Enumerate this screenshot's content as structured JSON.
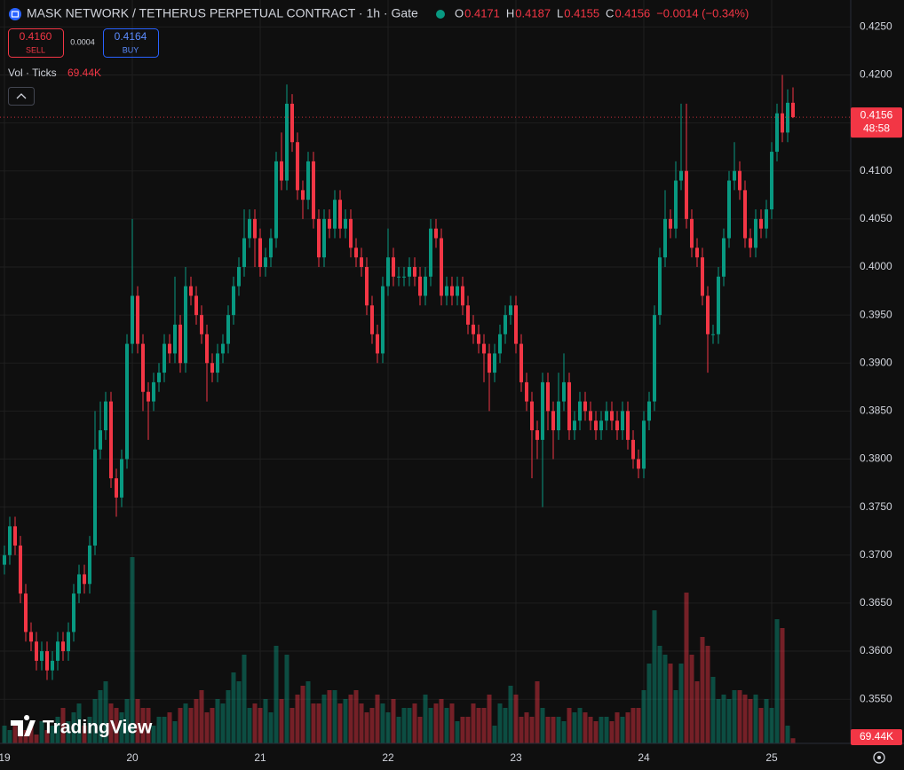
{
  "header": {
    "title": "MASK NETWORK / TETHERUS PERPETUAL CONTRACT · 1h · Gate",
    "ohlc_letters": [
      "O",
      "H",
      "L",
      "C"
    ],
    "change": "−0.0014 (−0.34%)",
    "sell_price": "0.4160",
    "sell_label": "SELL",
    "spread": 0.0004,
    "buy_price": 0.4164,
    "buy_label": "BUY",
    "volume_title": "Vol · Ticks",
    "volume_label": "69.44K",
    "countdown": "48:58",
    "brand": "TradingView"
  },
  "chart_data": {
    "type": "candlestick",
    "up_color": "#089981",
    "down_color": "#f23645",
    "ylim": [
      0.3504,
      0.4278
    ],
    "yticks": [
      {
        "value": 0.355,
        "label": "0.3550"
      },
      {
        "value": 0.36,
        "label": "0.3600"
      },
      {
        "value": 0.365,
        "label": "0.3650"
      },
      {
        "value": 0.37,
        "label": "0.3700"
      },
      {
        "value": 0.375,
        "label": "0.3750"
      },
      {
        "value": 0.38,
        "label": "0.3800"
      },
      {
        "value": 0.385,
        "label": "0.3850"
      },
      {
        "value": 0.39,
        "label": "0.3900"
      },
      {
        "value": 0.395,
        "label": "0.3950"
      },
      {
        "value": 0.4,
        "label": "0.4000"
      },
      {
        "value": 0.405,
        "label": "0.4050"
      },
      {
        "value": 0.41,
        "label": "0.4100"
      },
      {
        "value": 0.415,
        "label": "0.4150"
      },
      {
        "value": 0.42,
        "label": "0.4200"
      },
      {
        "value": 0.425,
        "label": "0.4250"
      }
    ],
    "xticks": [
      {
        "value": 0,
        "label": "19"
      },
      {
        "value": 24,
        "label": "20"
      },
      {
        "value": 48,
        "label": "21"
      },
      {
        "value": 72,
        "label": "22"
      },
      {
        "value": 96,
        "label": "23"
      },
      {
        "value": 120,
        "label": "24"
      },
      {
        "value": 144,
        "label": "25"
      }
    ],
    "open": [
      0.369,
      0.37,
      0.373,
      0.371,
      0.366,
      0.362,
      0.361,
      0.359,
      0.36,
      0.358,
      0.359,
      0.361,
      0.36,
      0.362,
      0.366,
      0.368,
      0.367,
      0.371,
      0.381,
      0.383,
      0.386,
      0.378,
      0.376,
      0.38,
      0.392,
      0.397,
      0.392,
      0.387,
      0.386,
      0.388,
      0.389,
      0.392,
      0.391,
      0.394,
      0.39,
      0.398,
      0.397,
      0.395,
      0.393,
      0.39,
      0.389,
      0.391,
      0.392,
      0.395,
      0.398,
      0.4,
      0.403,
      0.405,
      0.403,
      0.4,
      0.401,
      0.403,
      0.411,
      0.409,
      0.417,
      0.413,
      0.408,
      0.407,
      0.411,
      0.405,
      0.401,
      0.405,
      0.404,
      0.407,
      0.404,
      0.405,
      0.402,
      0.401,
      0.4,
      0.396,
      0.393,
      0.391,
      0.398,
      0.401,
      0.399,
      0.399,
      0.399,
      0.4,
      0.399,
      0.397,
      0.399,
      0.404,
      0.403,
      0.397,
      0.398,
      0.397,
      0.398,
      0.396,
      0.394,
      0.393,
      0.392,
      0.391,
      0.389,
      0.391,
      0.393,
      0.395,
      0.396,
      0.392,
      0.388,
      0.386,
      0.383,
      0.382,
      0.388,
      0.385,
      0.383,
      0.386,
      0.388,
      0.383,
      0.384,
      0.386,
      0.385,
      0.384,
      0.383,
      0.384,
      0.385,
      0.384,
      0.383,
      0.385,
      0.382,
      0.38,
      0.379,
      0.384,
      0.386,
      0.395,
      0.401,
      0.405,
      0.404,
      0.409,
      0.41,
      0.405,
      0.402,
      0.401,
      0.397,
      0.393,
      0.393,
      0.399,
      0.403,
      0.409,
      0.41,
      0.408,
      0.403,
      0.402,
      0.405,
      0.404,
      0.406,
      0.412,
      0.416,
      0.414,
      0.4171
    ],
    "high": [
      0.371,
      0.374,
      0.374,
      0.372,
      0.367,
      0.363,
      0.362,
      0.361,
      0.361,
      0.36,
      0.362,
      0.362,
      0.363,
      0.367,
      0.369,
      0.369,
      0.372,
      0.385,
      0.386,
      0.387,
      0.387,
      0.379,
      0.381,
      0.393,
      0.405,
      0.398,
      0.393,
      0.388,
      0.389,
      0.39,
      0.393,
      0.393,
      0.399,
      0.395,
      0.4,
      0.399,
      0.398,
      0.396,
      0.394,
      0.391,
      0.392,
      0.393,
      0.396,
      0.399,
      0.401,
      0.406,
      0.406,
      0.406,
      0.404,
      0.402,
      0.404,
      0.412,
      0.414,
      0.419,
      0.418,
      0.414,
      0.409,
      0.412,
      0.412,
      0.406,
      0.406,
      0.406,
      0.408,
      0.408,
      0.406,
      0.406,
      0.403,
      0.402,
      0.401,
      0.397,
      0.394,
      0.399,
      0.404,
      0.402,
      0.4,
      0.4,
      0.401,
      0.401,
      0.4,
      0.4,
      0.405,
      0.405,
      0.404,
      0.399,
      0.399,
      0.399,
      0.399,
      0.397,
      0.395,
      0.394,
      0.393,
      0.392,
      0.392,
      0.394,
      0.396,
      0.397,
      0.397,
      0.393,
      0.389,
      0.387,
      0.384,
      0.389,
      0.389,
      0.386,
      0.389,
      0.391,
      0.389,
      0.385,
      0.387,
      0.387,
      0.386,
      0.385,
      0.385,
      0.386,
      0.386,
      0.385,
      0.386,
      0.386,
      0.383,
      0.381,
      0.385,
      0.387,
      0.396,
      0.402,
      0.408,
      0.406,
      0.411,
      0.417,
      0.417,
      0.406,
      0.403,
      0.402,
      0.398,
      0.394,
      0.4,
      0.404,
      0.41,
      0.413,
      0.411,
      0.409,
      0.404,
      0.406,
      0.406,
      0.407,
      0.413,
      0.417,
      0.42,
      0.4185,
      0.4187
    ],
    "low": [
      0.368,
      0.369,
      0.37,
      0.365,
      0.361,
      0.36,
      0.358,
      0.358,
      0.357,
      0.357,
      0.358,
      0.359,
      0.359,
      0.361,
      0.365,
      0.366,
      0.366,
      0.37,
      0.38,
      0.382,
      0.377,
      0.374,
      0.375,
      0.379,
      0.391,
      0.391,
      0.385,
      0.382,
      0.385,
      0.387,
      0.388,
      0.39,
      0.39,
      0.389,
      0.389,
      0.396,
      0.394,
      0.392,
      0.386,
      0.388,
      0.388,
      0.39,
      0.391,
      0.394,
      0.397,
      0.399,
      0.402,
      0.4,
      0.399,
      0.399,
      0.4,
      0.402,
      0.408,
      0.408,
      0.412,
      0.407,
      0.405,
      0.406,
      0.404,
      0.4,
      0.4,
      0.403,
      0.403,
      0.403,
      0.403,
      0.401,
      0.4,
      0.399,
      0.395,
      0.392,
      0.39,
      0.39,
      0.397,
      0.398,
      0.398,
      0.398,
      0.398,
      0.398,
      0.396,
      0.396,
      0.398,
      0.402,
      0.396,
      0.396,
      0.396,
      0.396,
      0.395,
      0.393,
      0.392,
      0.391,
      0.388,
      0.385,
      0.388,
      0.39,
      0.392,
      0.394,
      0.391,
      0.387,
      0.385,
      0.378,
      0.38,
      0.375,
      0.383,
      0.38,
      0.382,
      0.385,
      0.382,
      0.382,
      0.383,
      0.384,
      0.383,
      0.382,
      0.382,
      0.383,
      0.383,
      0.382,
      0.382,
      0.381,
      0.379,
      0.378,
      0.378,
      0.383,
      0.385,
      0.394,
      0.4,
      0.403,
      0.403,
      0.408,
      0.404,
      0.401,
      0.4,
      0.396,
      0.389,
      0.392,
      0.392,
      0.398,
      0.402,
      0.408,
      0.407,
      0.402,
      0.401,
      0.401,
      0.403,
      0.403,
      0.405,
      0.411,
      0.413,
      0.413,
      0.4155
    ],
    "close": [
      0.37,
      0.373,
      0.371,
      0.366,
      0.362,
      0.361,
      0.359,
      0.36,
      0.358,
      0.359,
      0.361,
      0.36,
      0.362,
      0.366,
      0.368,
      0.367,
      0.371,
      0.381,
      0.383,
      0.386,
      0.378,
      0.376,
      0.38,
      0.392,
      0.397,
      0.392,
      0.387,
      0.386,
      0.388,
      0.389,
      0.392,
      0.391,
      0.394,
      0.39,
      0.398,
      0.397,
      0.395,
      0.393,
      0.39,
      0.389,
      0.391,
      0.392,
      0.395,
      0.398,
      0.4,
      0.403,
      0.405,
      0.403,
      0.4,
      0.401,
      0.403,
      0.411,
      0.409,
      0.417,
      0.413,
      0.408,
      0.407,
      0.411,
      0.405,
      0.401,
      0.405,
      0.404,
      0.407,
      0.404,
      0.405,
      0.402,
      0.401,
      0.4,
      0.396,
      0.393,
      0.391,
      0.398,
      0.401,
      0.399,
      0.399,
      0.399,
      0.4,
      0.399,
      0.397,
      0.399,
      0.404,
      0.403,
      0.397,
      0.398,
      0.397,
      0.398,
      0.396,
      0.394,
      0.393,
      0.392,
      0.391,
      0.389,
      0.391,
      0.393,
      0.395,
      0.396,
      0.392,
      0.388,
      0.386,
      0.383,
      0.382,
      0.388,
      0.385,
      0.383,
      0.386,
      0.388,
      0.383,
      0.384,
      0.386,
      0.385,
      0.384,
      0.383,
      0.384,
      0.385,
      0.384,
      0.383,
      0.385,
      0.382,
      0.38,
      0.379,
      0.384,
      0.386,
      0.395,
      0.401,
      0.405,
      0.404,
      0.409,
      0.41,
      0.405,
      0.402,
      0.401,
      0.397,
      0.393,
      0.393,
      0.399,
      0.403,
      0.409,
      0.41,
      0.408,
      0.403,
      0.402,
      0.405,
      0.404,
      0.406,
      0.412,
      0.416,
      0.414,
      0.4171,
      0.4156
    ],
    "volume": [
      240,
      180,
      300,
      120,
      180,
      240,
      120,
      300,
      180,
      240,
      360,
      480,
      300,
      420,
      540,
      240,
      360,
      600,
      720,
      840,
      540,
      480,
      420,
      600,
      2520,
      600,
      480,
      480,
      240,
      360,
      360,
      420,
      300,
      480,
      540,
      480,
      600,
      720,
      420,
      480,
      600,
      540,
      720,
      960,
      840,
      1200,
      480,
      540,
      480,
      600,
      420,
      1320,
      600,
      1200,
      480,
      660,
      780,
      840,
      540,
      540,
      660,
      720,
      720,
      540,
      600,
      660,
      720,
      540,
      420,
      480,
      660,
      540,
      420,
      600,
      360,
      480,
      480,
      540,
      360,
      660,
      480,
      540,
      600,
      480,
      540,
      300,
      360,
      360,
      540,
      480,
      480,
      660,
      240,
      540,
      480,
      780,
      660,
      360,
      420,
      360,
      840,
      480,
      360,
      360,
      360,
      300,
      480,
      420,
      480,
      420,
      360,
      300,
      360,
      360,
      300,
      420,
      360,
      420,
      480,
      480,
      720,
      1080,
      1800,
      1320,
      1200,
      1080,
      720,
      1080,
      2040,
      1200,
      840,
      1440,
      1320,
      900,
      600,
      660,
      600,
      720,
      720,
      660,
      600,
      660,
      480,
      600,
      480,
      1680,
      1560,
      240,
      69.44
    ]
  }
}
